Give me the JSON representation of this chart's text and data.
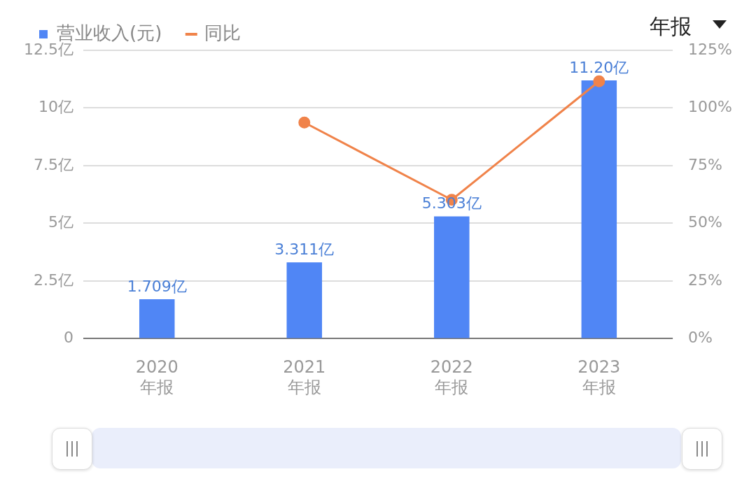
{
  "chart_data": {
    "type": "bar",
    "categories": [
      "2020\n年报",
      "2021\n年报",
      "2022\n年报",
      "2023\n年报"
    ],
    "series": [
      {
        "name": "营业收入(元)",
        "color": "#5086f5",
        "values": [
          1.709,
          3.311,
          5.303,
          11.2
        ],
        "value_labels": [
          "1.709亿",
          "3.311亿",
          "5.303亿",
          "11.20亿"
        ]
      },
      {
        "name": "同比",
        "type": "line",
        "axis": "y2",
        "color": "#f0834a",
        "values": [
          null,
          93.7,
          60.2,
          111.6
        ]
      }
    ],
    "ylim": [
      0,
      12.5
    ],
    "yticks": [
      0,
      {
        "value": 2.5,
        "label": "2.5亿"
      },
      {
        "value": 5,
        "label": "5亿"
      },
      {
        "value": 7.5,
        "label": "7.5亿"
      },
      {
        "value": 10,
        "label": "10亿"
      },
      {
        "value": 12.5,
        "label": "12.5亿"
      }
    ],
    "y2lim": [
      0,
      125
    ],
    "y2ticks": [
      {
        "value": 0,
        "label": "0%"
      },
      {
        "value": 25,
        "label": "25%"
      },
      {
        "value": 50,
        "label": "50%"
      },
      {
        "value": 75,
        "label": "75%"
      },
      {
        "value": 100,
        "label": "100%"
      },
      {
        "value": 125,
        "label": "125%"
      }
    ],
    "grid": "y",
    "legend": "top left",
    "marker": "circle",
    "annotations": [
      "年报"
    ]
  }
}
